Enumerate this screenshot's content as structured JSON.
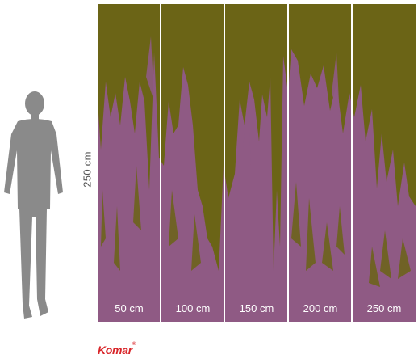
{
  "scale": {
    "height_label": "250 cm",
    "width_labels": [
      "50 cm",
      "100 cm",
      "150 cm",
      "200 cm",
      "250 cm"
    ]
  },
  "mural": {
    "panels": 5,
    "colors": {
      "olive": "#6b6416",
      "pink": "#8f5a84"
    }
  },
  "brand": {
    "name": "Komar",
    "mark": "®"
  }
}
